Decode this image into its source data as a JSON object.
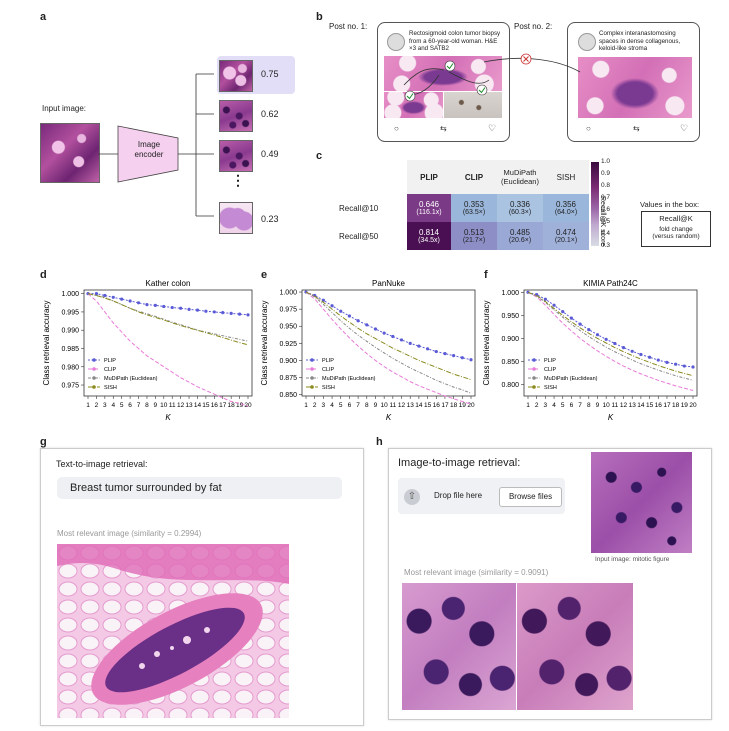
{
  "panels": {
    "a": "a",
    "b": "b",
    "c": "c",
    "d": "d",
    "e": "e",
    "f": "f",
    "g": "g",
    "h": "h"
  },
  "panel_a": {
    "input_label": "Input image:",
    "encoder_label": "Image encoder",
    "scores": [
      "0.75",
      "0.62",
      "0.49",
      "0.23"
    ],
    "ellipsis": "⋮",
    "highlight_color": "#e2def7"
  },
  "panel_b": {
    "post1_label": "Post no. 1:",
    "post2_label": "Post no. 2:",
    "post1_text": "Rectosigmoid colon tumor biopsy from a 60-year-old woman. H&E ×3 and SATB2",
    "post2_text": "Complex interanastomosing spaces in dense collagenous, keloid-like stroma"
  },
  "panel_c": {
    "columns": [
      "PLIP",
      "CLIP",
      "MuDiPath (Euclidean)",
      "SISH"
    ],
    "rows": [
      {
        "label": "Recall@10",
        "cells": [
          [
            "0.646",
            "(116.1x)"
          ],
          [
            "0.353",
            "(63.5×)"
          ],
          [
            "0.336",
            "(60.3×)"
          ],
          [
            "0.356",
            "(64.0×)"
          ]
        ]
      },
      {
        "label": "Recall@50",
        "cells": [
          [
            "0.814",
            "(34.5x)"
          ],
          [
            "0.513",
            "(21.7×)"
          ],
          [
            "0.485",
            "(20.6×)"
          ],
          [
            "0.474",
            "(20.1×)"
          ]
        ]
      }
    ],
    "colorbar_label": "Recall@K score",
    "colorbar_ticks": [
      "1.0",
      "0.9",
      "0.8",
      "0.7",
      "0.6",
      "0.5",
      "0.4",
      "0.3"
    ],
    "legend_title": "Values in the box:",
    "legend_line1": "Recall@K",
    "legend_line2": "fold change",
    "legend_line3": "(versus random)"
  },
  "chart_data": [
    {
      "type": "line",
      "title": "Kather colon",
      "xlabel": "K",
      "ylabel": "Class retrieval accuracy",
      "x": [
        1,
        2,
        3,
        4,
        5,
        6,
        7,
        8,
        9,
        10,
        11,
        12,
        13,
        14,
        15,
        16,
        17,
        18,
        19,
        20
      ],
      "ylim": [
        0.972,
        1.001
      ],
      "yticks": [
        "1.000",
        "0.995",
        "0.990",
        "0.985",
        "0.980",
        "0.975"
      ],
      "ytick_values": [
        1.0,
        0.995,
        0.99,
        0.985,
        0.98,
        0.975
      ],
      "legend_placement": "bottom-left",
      "series": [
        {
          "name": "PLIP",
          "color": "#5b5bd6",
          "values": [
            1.0,
            1.0,
            0.9995,
            0.999,
            0.9985,
            0.998,
            0.9975,
            0.997,
            0.9968,
            0.9965,
            0.9962,
            0.996,
            0.9957,
            0.9955,
            0.9952,
            0.995,
            0.9948,
            0.9946,
            0.9944,
            0.9942
          ]
        },
        {
          "name": "CLIP",
          "color": "#e87ad8",
          "values": [
            1.0,
            0.998,
            0.995,
            0.992,
            0.9895,
            0.987,
            0.985,
            0.983,
            0.9815,
            0.98,
            0.9785,
            0.977,
            0.9758,
            0.9745,
            0.9735,
            0.9725,
            0.9715,
            0.9705,
            0.97,
            0.9692
          ]
        },
        {
          "name": "MuDiPath (Euclidean)",
          "color": "#888888",
          "values": [
            1.0,
            0.9995,
            0.999,
            0.998,
            0.997,
            0.996,
            0.9952,
            0.9945,
            0.9938,
            0.993,
            0.9922,
            0.9915,
            0.9908,
            0.99,
            0.9895,
            0.989,
            0.9885,
            0.988,
            0.9875,
            0.987
          ]
        },
        {
          "name": "SISH",
          "color": "#8a8a1e",
          "values": [
            1.0,
            0.9995,
            0.9988,
            0.998,
            0.997,
            0.996,
            0.995,
            0.9942,
            0.9935,
            0.9928,
            0.992,
            0.9913,
            0.9906,
            0.99,
            0.9893,
            0.9887,
            0.988,
            0.9873,
            0.9866,
            0.986
          ]
        }
      ]
    },
    {
      "type": "line",
      "title": "PanNuke",
      "xlabel": "K",
      "ylabel": "Class retrieval accuracy",
      "x": [
        1,
        2,
        3,
        4,
        5,
        6,
        7,
        8,
        9,
        10,
        11,
        12,
        13,
        14,
        15,
        16,
        17,
        18,
        19,
        20
      ],
      "ylim": [
        0.848,
        1.003
      ],
      "yticks": [
        "1.000",
        "0.975",
        "0.950",
        "0.925",
        "0.900",
        "0.875",
        "0.850"
      ],
      "ytick_values": [
        1.0,
        0.975,
        0.95,
        0.925,
        0.9,
        0.875,
        0.85
      ],
      "legend_placement": "bottom-left",
      "series": [
        {
          "name": "PLIP",
          "color": "#5b5bd6",
          "values": [
            1.0,
            0.995,
            0.988,
            0.98,
            0.972,
            0.965,
            0.958,
            0.952,
            0.946,
            0.94,
            0.935,
            0.93,
            0.925,
            0.921,
            0.917,
            0.913,
            0.91,
            0.907,
            0.904,
            0.901
          ]
        },
        {
          "name": "CLIP",
          "color": "#e87ad8",
          "values": [
            1.0,
            0.99,
            0.975,
            0.96,
            0.946,
            0.933,
            0.921,
            0.91,
            0.9,
            0.891,
            0.883,
            0.876,
            0.869,
            0.863,
            0.858,
            0.853,
            0.848,
            0.844,
            0.84,
            0.836
          ]
        },
        {
          "name": "MuDiPath (Euclidean)",
          "color": "#888888",
          "values": [
            1.0,
            0.993,
            0.982,
            0.97,
            0.958,
            0.947,
            0.937,
            0.928,
            0.919,
            0.911,
            0.903,
            0.896,
            0.889,
            0.883,
            0.877,
            0.871,
            0.866,
            0.861,
            0.857,
            0.852
          ]
        },
        {
          "name": "SISH",
          "color": "#8a8a1e",
          "values": [
            1.0,
            0.994,
            0.985,
            0.975,
            0.965,
            0.956,
            0.947,
            0.939,
            0.932,
            0.925,
            0.918,
            0.912,
            0.906,
            0.9,
            0.895,
            0.89,
            0.885,
            0.88,
            0.876,
            0.872
          ]
        }
      ]
    },
    {
      "type": "line",
      "title": "KIMIA Path24C",
      "xlabel": "K",
      "ylabel": "Class retrieval accuracy",
      "x": [
        1,
        2,
        3,
        4,
        5,
        6,
        7,
        8,
        9,
        10,
        11,
        12,
        13,
        14,
        15,
        16,
        17,
        18,
        19,
        20
      ],
      "ylim": [
        0.775,
        1.005
      ],
      "yticks": [
        "1.000",
        "0.950",
        "0.900",
        "0.850",
        "0.800"
      ],
      "ytick_values": [
        1.0,
        0.95,
        0.9,
        0.85,
        0.8
      ],
      "legend_placement": "bottom-left",
      "series": [
        {
          "name": "PLIP",
          "color": "#5b5bd6",
          "values": [
            1.0,
            0.995,
            0.985,
            0.972,
            0.958,
            0.944,
            0.931,
            0.919,
            0.908,
            0.898,
            0.889,
            0.88,
            0.872,
            0.865,
            0.859,
            0.853,
            0.848,
            0.844,
            0.84,
            0.838
          ]
        },
        {
          "name": "CLIP",
          "color": "#e87ad8",
          "values": [
            1.0,
            0.99,
            0.972,
            0.952,
            0.933,
            0.916,
            0.9,
            0.886,
            0.873,
            0.861,
            0.85,
            0.84,
            0.831,
            0.823,
            0.816,
            0.809,
            0.803,
            0.797,
            0.792,
            0.787
          ]
        },
        {
          "name": "MuDiPath (Euclidean)",
          "color": "#888888",
          "values": [
            1.0,
            0.992,
            0.978,
            0.962,
            0.946,
            0.931,
            0.917,
            0.904,
            0.892,
            0.881,
            0.871,
            0.862,
            0.853,
            0.845,
            0.838,
            0.831,
            0.825,
            0.819,
            0.814,
            0.809
          ]
        },
        {
          "name": "SISH",
          "color": "#8a8a1e",
          "values": [
            1.0,
            0.993,
            0.98,
            0.965,
            0.95,
            0.936,
            0.923,
            0.911,
            0.9,
            0.89,
            0.88,
            0.871,
            0.863,
            0.855,
            0.848,
            0.841,
            0.835,
            0.829,
            0.824,
            0.819
          ]
        }
      ]
    }
  ],
  "panel_g": {
    "heading": "Text-to-image retrieval:",
    "query": "Breast tumor surrounded by fat",
    "result_label": "Most relevant image (similarity = 0.2994)"
  },
  "panel_h": {
    "heading": "Image-to-image retrieval:",
    "drop_text": "Drop file here",
    "browse_label": "Browse files",
    "input_caption": "Input image: mitotic figure",
    "result_label": "Most relevant image (similarity = 0.9091)"
  }
}
